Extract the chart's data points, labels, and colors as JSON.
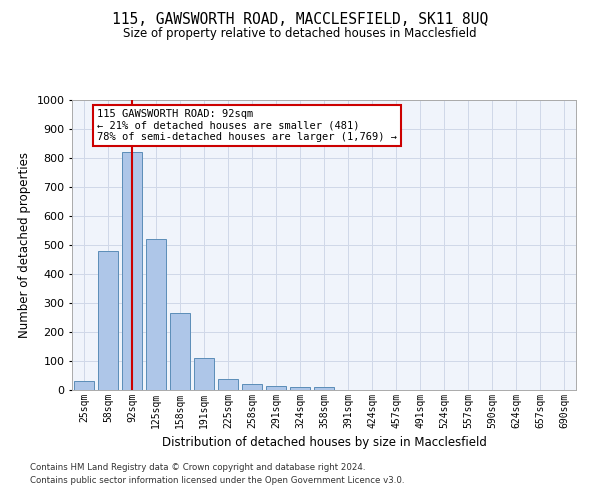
{
  "title_line1": "115, GAWSWORTH ROAD, MACCLESFIELD, SK11 8UQ",
  "title_line2": "Size of property relative to detached houses in Macclesfield",
  "xlabel": "Distribution of detached houses by size in Macclesfield",
  "ylabel": "Number of detached properties",
  "footer_line1": "Contains HM Land Registry data © Crown copyright and database right 2024.",
  "footer_line2": "Contains public sector information licensed under the Open Government Licence v3.0.",
  "bar_labels": [
    "25sqm",
    "58sqm",
    "92sqm",
    "125sqm",
    "158sqm",
    "191sqm",
    "225sqm",
    "258sqm",
    "291sqm",
    "324sqm",
    "358sqm",
    "391sqm",
    "424sqm",
    "457sqm",
    "491sqm",
    "524sqm",
    "557sqm",
    "590sqm",
    "624sqm",
    "657sqm",
    "690sqm"
  ],
  "bar_values": [
    30,
    480,
    820,
    520,
    265,
    110,
    38,
    20,
    15,
    10,
    10,
    0,
    0,
    0,
    0,
    0,
    0,
    0,
    0,
    0,
    0
  ],
  "bar_color": "#aec6e8",
  "bar_edgecolor": "#5b8db8",
  "grid_color": "#d0d8e8",
  "background_color": "#f0f4fb",
  "property_line_x": 2,
  "property_line_color": "#cc0000",
  "annotation_text": "115 GAWSWORTH ROAD: 92sqm\n← 21% of detached houses are smaller (481)\n78% of semi-detached houses are larger (1,769) →",
  "annotation_box_color": "#ffffff",
  "annotation_box_edgecolor": "#cc0000",
  "ylim": [
    0,
    1000
  ],
  "yticks": [
    0,
    100,
    200,
    300,
    400,
    500,
    600,
    700,
    800,
    900,
    1000
  ]
}
